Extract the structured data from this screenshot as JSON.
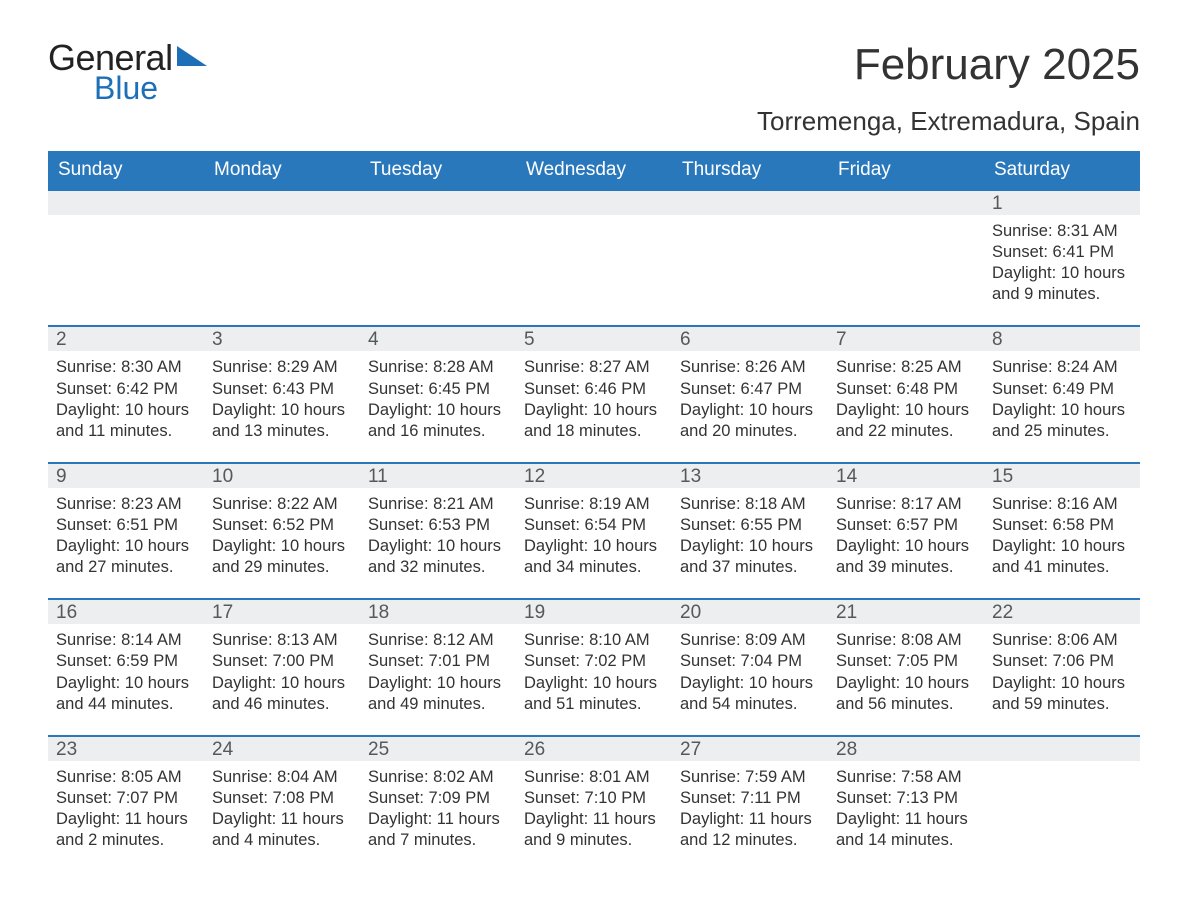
{
  "colors": {
    "header_bg": "#2a78bc",
    "header_text": "#ffffff",
    "row_border": "#2a78bc",
    "daynum_bg": "#eceeef",
    "daynum_text": "#54595c",
    "body_text": "#333333",
    "logo_blue": "#1d6fb8",
    "page_bg": "#ffffff"
  },
  "logo": {
    "word1": "General",
    "word2": "Blue"
  },
  "title": "February 2025",
  "location": "Torremenga, Extremadura, Spain",
  "dow": [
    "Sunday",
    "Monday",
    "Tuesday",
    "Wednesday",
    "Thursday",
    "Friday",
    "Saturday"
  ],
  "labels": {
    "sunrise": "Sunrise:",
    "sunset": "Sunset:",
    "daylight": "Daylight:"
  },
  "weeks": [
    [
      {
        "empty": true
      },
      {
        "empty": true
      },
      {
        "empty": true
      },
      {
        "empty": true
      },
      {
        "empty": true
      },
      {
        "empty": true
      },
      {
        "n": "1",
        "sunrise": "8:31 AM",
        "sunset": "6:41 PM",
        "daylight": "10 hours and 9 minutes."
      }
    ],
    [
      {
        "n": "2",
        "sunrise": "8:30 AM",
        "sunset": "6:42 PM",
        "daylight": "10 hours and 11 minutes."
      },
      {
        "n": "3",
        "sunrise": "8:29 AM",
        "sunset": "6:43 PM",
        "daylight": "10 hours and 13 minutes."
      },
      {
        "n": "4",
        "sunrise": "8:28 AM",
        "sunset": "6:45 PM",
        "daylight": "10 hours and 16 minutes."
      },
      {
        "n": "5",
        "sunrise": "8:27 AM",
        "sunset": "6:46 PM",
        "daylight": "10 hours and 18 minutes."
      },
      {
        "n": "6",
        "sunrise": "8:26 AM",
        "sunset": "6:47 PM",
        "daylight": "10 hours and 20 minutes."
      },
      {
        "n": "7",
        "sunrise": "8:25 AM",
        "sunset": "6:48 PM",
        "daylight": "10 hours and 22 minutes."
      },
      {
        "n": "8",
        "sunrise": "8:24 AM",
        "sunset": "6:49 PM",
        "daylight": "10 hours and 25 minutes."
      }
    ],
    [
      {
        "n": "9",
        "sunrise": "8:23 AM",
        "sunset": "6:51 PM",
        "daylight": "10 hours and 27 minutes."
      },
      {
        "n": "10",
        "sunrise": "8:22 AM",
        "sunset": "6:52 PM",
        "daylight": "10 hours and 29 minutes."
      },
      {
        "n": "11",
        "sunrise": "8:21 AM",
        "sunset": "6:53 PM",
        "daylight": "10 hours and 32 minutes."
      },
      {
        "n": "12",
        "sunrise": "8:19 AM",
        "sunset": "6:54 PM",
        "daylight": "10 hours and 34 minutes."
      },
      {
        "n": "13",
        "sunrise": "8:18 AM",
        "sunset": "6:55 PM",
        "daylight": "10 hours and 37 minutes."
      },
      {
        "n": "14",
        "sunrise": "8:17 AM",
        "sunset": "6:57 PM",
        "daylight": "10 hours and 39 minutes."
      },
      {
        "n": "15",
        "sunrise": "8:16 AM",
        "sunset": "6:58 PM",
        "daylight": "10 hours and 41 minutes."
      }
    ],
    [
      {
        "n": "16",
        "sunrise": "8:14 AM",
        "sunset": "6:59 PM",
        "daylight": "10 hours and 44 minutes."
      },
      {
        "n": "17",
        "sunrise": "8:13 AM",
        "sunset": "7:00 PM",
        "daylight": "10 hours and 46 minutes."
      },
      {
        "n": "18",
        "sunrise": "8:12 AM",
        "sunset": "7:01 PM",
        "daylight": "10 hours and 49 minutes."
      },
      {
        "n": "19",
        "sunrise": "8:10 AM",
        "sunset": "7:02 PM",
        "daylight": "10 hours and 51 minutes."
      },
      {
        "n": "20",
        "sunrise": "8:09 AM",
        "sunset": "7:04 PM",
        "daylight": "10 hours and 54 minutes."
      },
      {
        "n": "21",
        "sunrise": "8:08 AM",
        "sunset": "7:05 PM",
        "daylight": "10 hours and 56 minutes."
      },
      {
        "n": "22",
        "sunrise": "8:06 AM",
        "sunset": "7:06 PM",
        "daylight": "10 hours and 59 minutes."
      }
    ],
    [
      {
        "n": "23",
        "sunrise": "8:05 AM",
        "sunset": "7:07 PM",
        "daylight": "11 hours and 2 minutes."
      },
      {
        "n": "24",
        "sunrise": "8:04 AM",
        "sunset": "7:08 PM",
        "daylight": "11 hours and 4 minutes."
      },
      {
        "n": "25",
        "sunrise": "8:02 AM",
        "sunset": "7:09 PM",
        "daylight": "11 hours and 7 minutes."
      },
      {
        "n": "26",
        "sunrise": "8:01 AM",
        "sunset": "7:10 PM",
        "daylight": "11 hours and 9 minutes."
      },
      {
        "n": "27",
        "sunrise": "7:59 AM",
        "sunset": "7:11 PM",
        "daylight": "11 hours and 12 minutes."
      },
      {
        "n": "28",
        "sunrise": "7:58 AM",
        "sunset": "7:13 PM",
        "daylight": "11 hours and 14 minutes."
      },
      {
        "empty": true
      }
    ]
  ]
}
